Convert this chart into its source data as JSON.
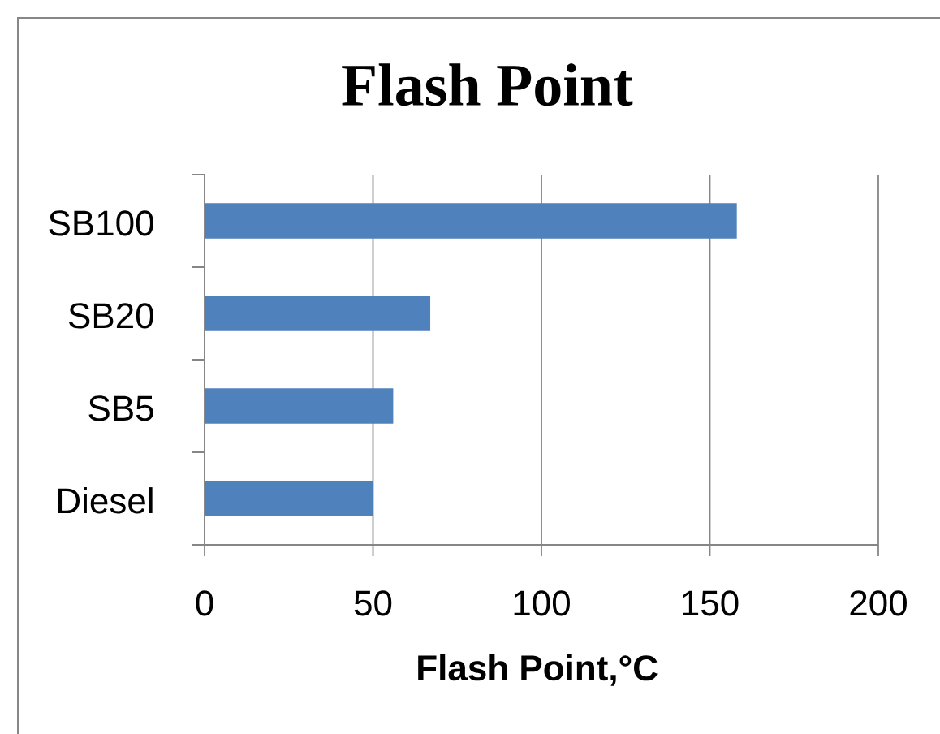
{
  "chart_data": {
    "type": "bar",
    "orientation": "horizontal",
    "title": "Flash Point",
    "xlabel": "Flash Point,°C",
    "categories": [
      "SB100",
      "SB20",
      "SB5",
      "Diesel"
    ],
    "values": [
      158,
      67,
      56,
      50
    ],
    "color": "#4f81bd",
    "xlim": [
      0,
      200
    ],
    "xticks": [
      0,
      50,
      100,
      150,
      200
    ],
    "grid": "x"
  }
}
